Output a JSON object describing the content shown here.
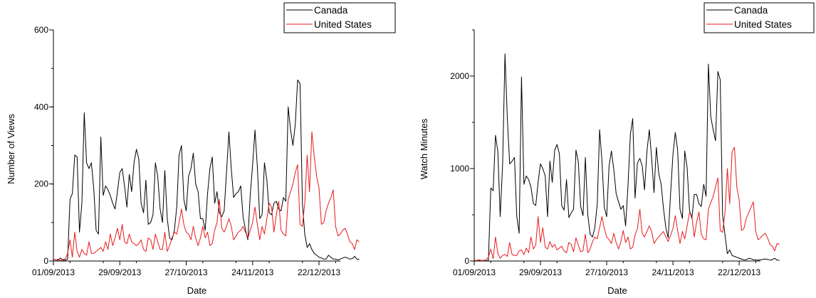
{
  "colors": {
    "canada": "#000000",
    "united_states": "#e8191c"
  },
  "chart_data": [
    {
      "type": "line",
      "xlabel": "Date",
      "ylabel": "Number of Views",
      "xlim": [
        "2013-09-01",
        "2013-12-31"
      ],
      "ylim": [
        0,
        600
      ],
      "y_major_ticks": [
        0,
        200,
        400,
        600
      ],
      "x_tick_labels": [
        "01/09/2013",
        "29/09/2013",
        "27/10/2013",
        "24/11/2013",
        "22/12/2013"
      ],
      "legend_position": "top-right",
      "grid": false,
      "start_date": "2013-09-01",
      "series": [
        {
          "name": "Canada",
          "color": "#000000",
          "values": [
            5,
            3,
            2,
            8,
            2,
            2,
            5,
            160,
            175,
            275,
            270,
            75,
            150,
            385,
            255,
            240,
            255,
            190,
            80,
            70,
            322,
            170,
            195,
            185,
            170,
            150,
            135,
            180,
            230,
            240,
            195,
            140,
            225,
            180,
            255,
            290,
            265,
            150,
            125,
            210,
            95,
            100,
            120,
            255,
            220,
            135,
            100,
            235,
            110,
            60,
            55,
            80,
            140,
            275,
            300,
            160,
            130,
            220,
            240,
            280,
            200,
            180,
            110,
            110,
            80,
            175,
            240,
            270,
            150,
            180,
            125,
            115,
            130,
            230,
            335,
            240,
            165,
            175,
            180,
            195,
            115,
            80,
            55,
            170,
            250,
            340,
            245,
            110,
            120,
            255,
            210,
            125,
            120,
            150,
            155,
            135,
            130,
            165,
            155,
            400,
            340,
            300,
            355,
            470,
            460,
            150,
            70,
            35,
            45,
            30,
            20,
            15,
            10,
            8,
            5,
            5,
            15,
            10,
            5,
            5,
            3,
            5,
            8,
            10,
            8,
            5,
            6,
            12,
            5,
            4
          ]
        },
        {
          "name": "United States",
          "color": "#e8191c",
          "values": [
            6,
            2,
            5,
            1,
            4,
            5,
            20,
            55,
            10,
            75,
            25,
            10,
            30,
            20,
            15,
            50,
            20,
            20,
            25,
            30,
            35,
            25,
            50,
            30,
            70,
            40,
            60,
            85,
            55,
            95,
            50,
            45,
            70,
            50,
            45,
            40,
            45,
            55,
            30,
            25,
            60,
            55,
            30,
            70,
            50,
            30,
            30,
            75,
            25,
            40,
            60,
            75,
            70,
            100,
            135,
            95,
            75,
            70,
            55,
            90,
            60,
            40,
            60,
            90,
            60,
            75,
            40,
            45,
            80,
            100,
            160,
            85,
            75,
            90,
            110,
            90,
            55,
            65,
            75,
            80,
            90,
            75,
            60,
            80,
            100,
            140,
            95,
            55,
            90,
            70,
            110,
            150,
            140,
            75,
            120,
            155,
            80,
            70,
            65,
            160,
            180,
            200,
            230,
            250,
            95,
            90,
            150,
            275,
            180,
            335,
            270,
            220,
            190,
            95,
            100,
            130,
            150,
            165,
            185,
            90,
            65,
            70,
            80,
            85,
            70,
            50,
            45,
            30,
            55,
            50
          ]
        }
      ]
    },
    {
      "type": "line",
      "xlabel": "Date",
      "ylabel": "Watch Minutes",
      "xlim": [
        "2013-09-01",
        "2013-12-31"
      ],
      "ylim": [
        0,
        2500
      ],
      "y_major_ticks": [
        0,
        1000,
        2000
      ],
      "x_tick_labels": [
        "01/09/2013",
        "29/09/2013",
        "27/10/2013",
        "24/11/2013",
        "22/12/2013"
      ],
      "legend_position": "top-right",
      "grid": false,
      "start_date": "2013-09-01",
      "series": [
        {
          "name": "Canada",
          "color": "#000000",
          "values": [
            5,
            3,
            2,
            8,
            2,
            2,
            5,
            790,
            760,
            1360,
            1180,
            480,
            1050,
            2240,
            1540,
            1050,
            1080,
            1120,
            480,
            300,
            1990,
            830,
            920,
            880,
            800,
            620,
            600,
            850,
            1050,
            1000,
            920,
            480,
            1080,
            850,
            1200,
            1260,
            1160,
            600,
            550,
            880,
            470,
            520,
            560,
            1200,
            1070,
            590,
            490,
            1120,
            500,
            290,
            260,
            360,
            620,
            1420,
            1080,
            580,
            480,
            1030,
            1190,
            990,
            730,
            640,
            560,
            600,
            380,
            820,
            1370,
            1540,
            680,
            1060,
            1110,
            1030,
            770,
            1180,
            1420,
            1110,
            740,
            1230,
            950,
            830,
            570,
            360,
            250,
            730,
            1150,
            1390,
            1200,
            560,
            460,
            1190,
            1010,
            550,
            460,
            720,
            720,
            620,
            590,
            830,
            700,
            2130,
            1560,
            1420,
            1300,
            2050,
            1960,
            500,
            280,
            80,
            120,
            60,
            50,
            40,
            30,
            20,
            15,
            12,
            30,
            25,
            15,
            12,
            10,
            14,
            18,
            22,
            18,
            10,
            14,
            30,
            10,
            8
          ]
        },
        {
          "name": "United States",
          "color": "#e8191c",
          "values": [
            10,
            5,
            15,
            2,
            8,
            12,
            40,
            130,
            25,
            260,
            80,
            30,
            60,
            70,
            50,
            200,
            70,
            60,
            60,
            110,
            120,
            70,
            140,
            90,
            260,
            130,
            170,
            480,
            200,
            360,
            150,
            130,
            210,
            150,
            180,
            120,
            140,
            160,
            110,
            90,
            200,
            180,
            100,
            250,
            170,
            100,
            110,
            290,
            90,
            130,
            210,
            260,
            240,
            360,
            480,
            350,
            260,
            230,
            190,
            300,
            200,
            130,
            210,
            330,
            200,
            260,
            130,
            150,
            280,
            350,
            560,
            300,
            260,
            320,
            380,
            320,
            190,
            230,
            260,
            290,
            320,
            260,
            210,
            280,
            350,
            490,
            330,
            190,
            320,
            240,
            380,
            520,
            490,
            260,
            420,
            530,
            290,
            240,
            230,
            560,
            630,
            700,
            800,
            900,
            330,
            310,
            520,
            1000,
            620,
            1180,
            1230,
            800,
            660,
            330,
            350,
            460,
            520,
            580,
            640,
            320,
            230,
            250,
            280,
            300,
            250,
            180,
            160,
            110,
            190,
            180
          ]
        }
      ]
    }
  ]
}
